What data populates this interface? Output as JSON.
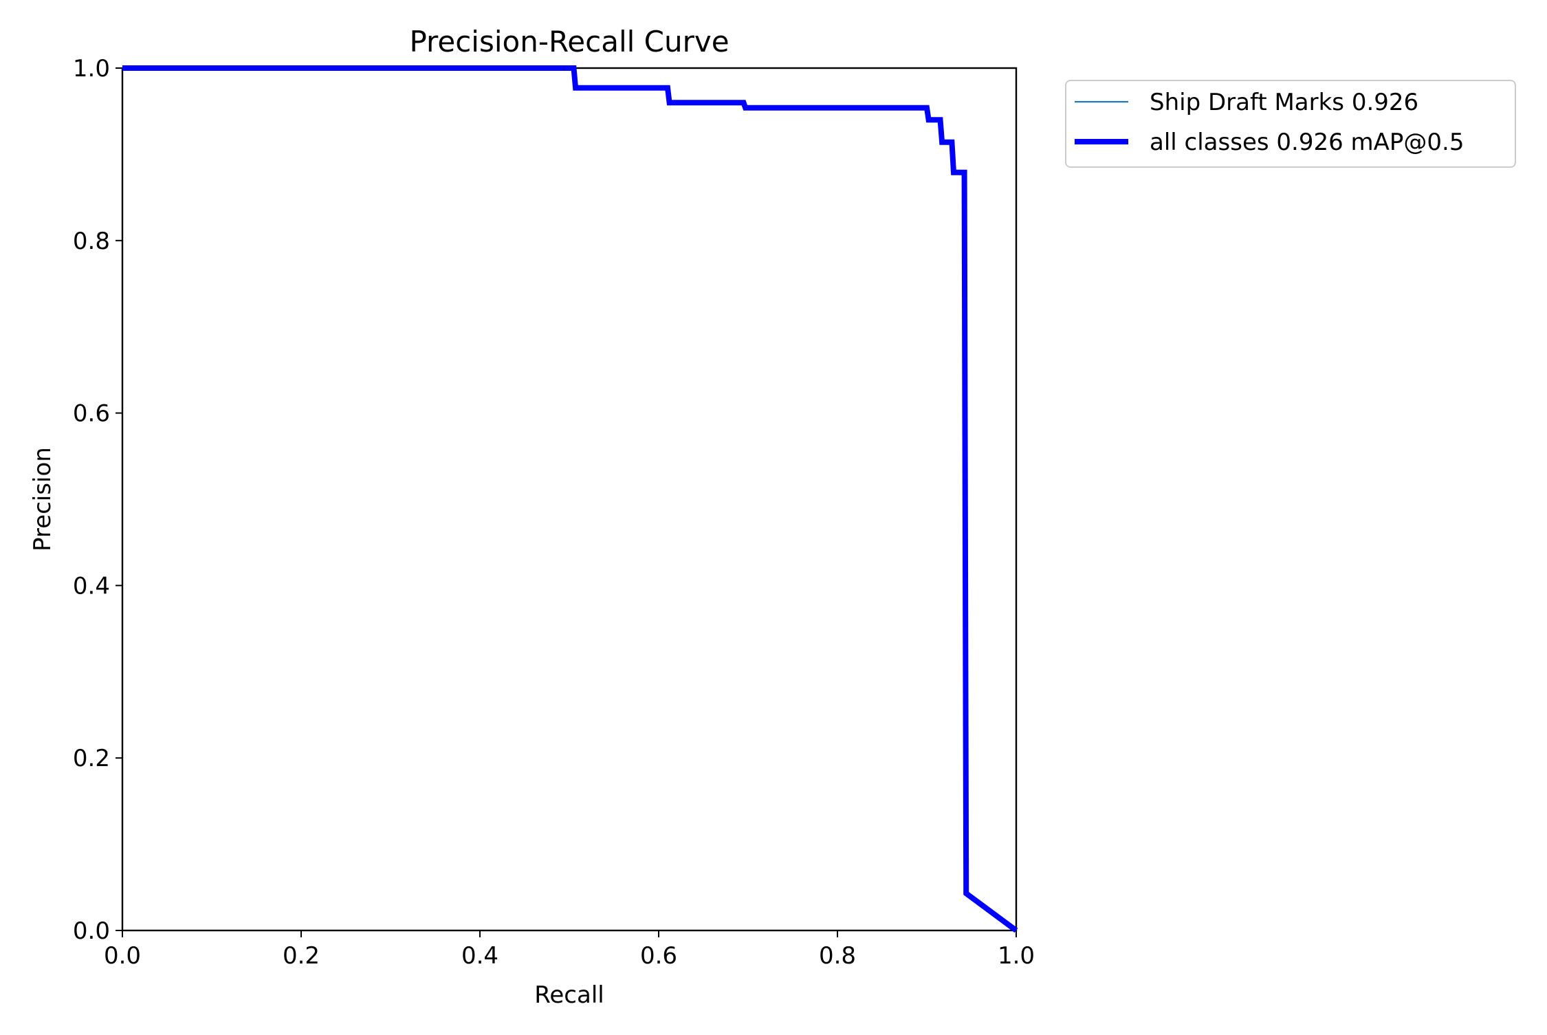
{
  "chart_data": {
    "type": "line",
    "title": "Precision-Recall Curve",
    "xlabel": "Recall",
    "ylabel": "Precision",
    "xlim": [
      0.0,
      1.0
    ],
    "ylim": [
      0.0,
      1.0
    ],
    "xticks": [
      "0.0",
      "0.2",
      "0.4",
      "0.6",
      "0.8",
      "1.0"
    ],
    "yticks": [
      "0.0",
      "0.2",
      "0.4",
      "0.6",
      "0.8",
      "1.0"
    ],
    "grid": false,
    "legend_position": "outside top-right",
    "series": [
      {
        "name": "Ship Draft Marks 0.926",
        "color": "#1f77b4",
        "style": "thin",
        "x": [
          0.0,
          0.505,
          0.507,
          0.61,
          0.612,
          0.695,
          0.697,
          0.9,
          0.902,
          0.915,
          0.917,
          0.928,
          0.93,
          0.942,
          0.944,
          1.0
        ],
        "y": [
          1.0,
          1.0,
          0.977,
          0.977,
          0.96,
          0.96,
          0.954,
          0.954,
          0.94,
          0.94,
          0.914,
          0.914,
          0.879,
          0.879,
          0.043,
          0.0
        ]
      },
      {
        "name": "all classes 0.926 mAP@0.5",
        "color": "#0000ff",
        "style": "thick",
        "x": [
          0.0,
          0.505,
          0.507,
          0.61,
          0.612,
          0.695,
          0.697,
          0.9,
          0.902,
          0.915,
          0.917,
          0.928,
          0.93,
          0.942,
          0.944,
          1.0
        ],
        "y": [
          1.0,
          1.0,
          0.977,
          0.977,
          0.96,
          0.96,
          0.954,
          0.954,
          0.94,
          0.94,
          0.914,
          0.914,
          0.879,
          0.879,
          0.043,
          0.0
        ]
      }
    ]
  }
}
